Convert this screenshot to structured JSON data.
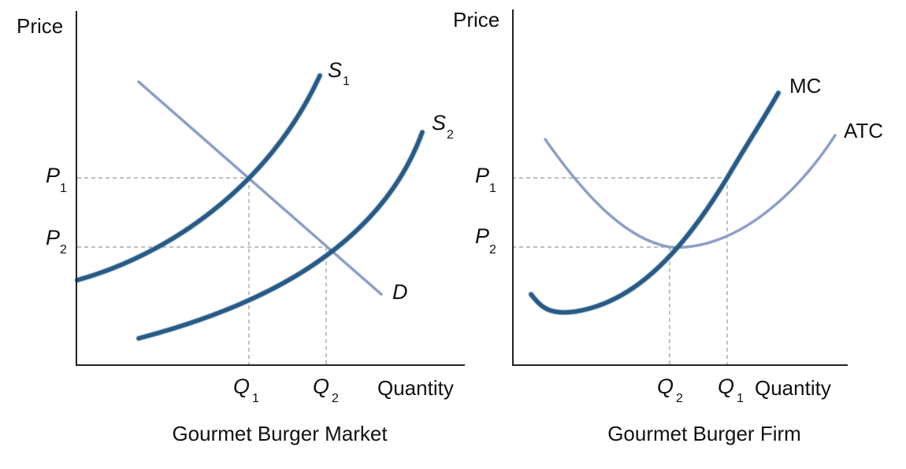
{
  "left_panel": {
    "y_axis_label": "Price",
    "x_axis_label": "Quantity",
    "caption": "Gourmet Burger Market",
    "curves": {
      "supply_1": {
        "letter": "S",
        "sub": "1"
      },
      "supply_2": {
        "letter": "S",
        "sub": "2"
      },
      "demand": {
        "letter": "D"
      }
    },
    "price_ticks": [
      {
        "letter": "P",
        "sub": "1"
      },
      {
        "letter": "P",
        "sub": "2"
      }
    ],
    "quantity_ticks": [
      {
        "letter": "Q",
        "sub": "1"
      },
      {
        "letter": "Q",
        "sub": "2"
      }
    ]
  },
  "right_panel": {
    "y_axis_label": "Price",
    "x_axis_label": "Quantity",
    "caption": "Gourmet Burger Firm",
    "curves": {
      "mc": "MC",
      "atc": "ATC"
    },
    "price_ticks": [
      {
        "letter": "P",
        "sub": "1"
      },
      {
        "letter": "P",
        "sub": "2"
      }
    ],
    "quantity_ticks": [
      {
        "letter": "Q",
        "sub": "2"
      },
      {
        "letter": "Q",
        "sub": "1"
      }
    ]
  },
  "colors": {
    "supply_curve": "#255a86",
    "demand_curve": "#8ea0c8",
    "guide_lines": "#9a9a9a"
  }
}
